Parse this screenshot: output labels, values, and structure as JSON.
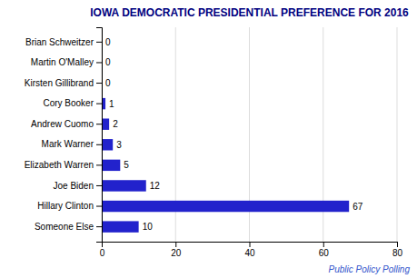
{
  "chart_data": {
    "type": "bar",
    "orientation": "horizontal",
    "title": "IOWA DEMOCRATIC PRESIDENTIAL PREFERENCE FOR 2016",
    "categories": [
      "Someone Else",
      "Hillary Clinton",
      "Joe Biden",
      "Elizabeth Warren",
      "Mark Warner",
      "Andrew Cuomo",
      "Cory Booker",
      "Kirsten Gillibrand",
      "Martin O'Malley",
      "Brian Schweitzer"
    ],
    "values": [
      10,
      67,
      12,
      5,
      3,
      2,
      1,
      0,
      0,
      0
    ],
    "color": "#2222cc",
    "xlim": [
      0,
      80
    ],
    "xticks": [
      0,
      20,
      40,
      60,
      80
    ],
    "grid": true,
    "data_labels": true,
    "annotations": [
      "Public Policy Polling"
    ]
  }
}
